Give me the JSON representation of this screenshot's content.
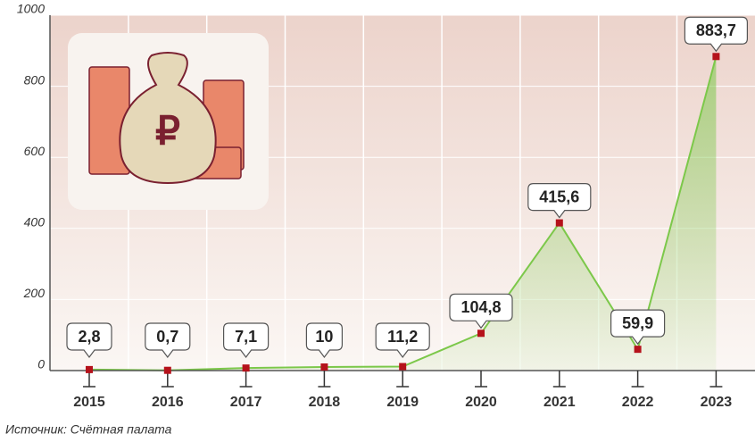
{
  "chart_data": {
    "type": "line",
    "categories": [
      "2015",
      "2016",
      "2017",
      "2018",
      "2019",
      "2020",
      "2021",
      "2022",
      "2023"
    ],
    "values": [
      2.8,
      0.7,
      7.1,
      10,
      11.2,
      104.8,
      415.6,
      59.9,
      883.7
    ],
    "value_labels": [
      "2,8",
      "0,7",
      "7,1",
      "10",
      "11,2",
      "104,8",
      "415,6",
      "59,9",
      "883,7"
    ],
    "color": "#7cc84a",
    "marker_color": "#b5121b",
    "ylim": [
      0,
      1000
    ],
    "yticks": [
      0,
      200,
      400,
      600,
      800,
      1000
    ],
    "grid": true,
    "source": "Источник: Счётная палата"
  }
}
